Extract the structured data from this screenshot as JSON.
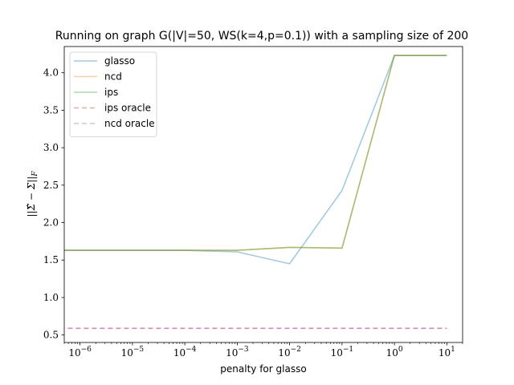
{
  "chart_data": {
    "type": "line",
    "title": "Running on graph G(|V|=50, WS(k=4,p=0.1)) with a sampling size of 200",
    "xlabel": "penalty for glasso",
    "ylabel": "||Σ̂ − Σ||F",
    "xscale": "log",
    "xlim": [
      5e-07,
      20
    ],
    "ylim": [
      0.4,
      4.35
    ],
    "x": [
      1e-07,
      1e-06,
      1e-05,
      0.0001,
      0.001,
      0.01,
      0.1,
      1,
      10
    ],
    "xtick_values": [
      1e-06,
      1e-05,
      0.0001,
      0.001,
      0.01,
      0.1,
      1,
      10
    ],
    "xtick_exponents": [
      "−6",
      "−5",
      "−4",
      "−3",
      "−2",
      "−1",
      "0",
      "1"
    ],
    "xtick_base": "10",
    "yticks": [
      0.5,
      1.0,
      1.5,
      2.0,
      2.5,
      3.0,
      3.5,
      4.0
    ],
    "ytick_labels": [
      "0.5",
      "1.0",
      "1.5",
      "2.0",
      "2.5",
      "3.0",
      "3.5",
      "4.0"
    ],
    "grid": false,
    "legend_position": "top-left",
    "series": [
      {
        "name": "glasso",
        "color": "#1f77b4",
        "opacity": 0.4,
        "dashed": false,
        "values": [
          1.63,
          1.63,
          1.63,
          1.63,
          1.61,
          1.45,
          2.43,
          4.23,
          4.23
        ]
      },
      {
        "name": "ncd",
        "color": "#ff7f0e",
        "opacity": 0.4,
        "dashed": false,
        "values": [
          1.63,
          1.63,
          1.63,
          1.63,
          1.63,
          1.67,
          1.66,
          4.23,
          4.23
        ]
      },
      {
        "name": "ips",
        "color": "#2ca02c",
        "opacity": 0.4,
        "dashed": false,
        "values": [
          1.63,
          1.63,
          1.63,
          1.63,
          1.63,
          1.67,
          1.66,
          4.23,
          4.23
        ]
      },
      {
        "name": "ips oracle",
        "color": "#d62728",
        "opacity": 0.4,
        "dashed": true,
        "values": [
          0.59,
          0.59,
          0.59,
          0.59,
          0.59,
          0.59,
          0.59,
          0.59,
          0.59
        ]
      },
      {
        "name": "ncd oracle",
        "color": "#9467bd",
        "opacity": 0.4,
        "dashed": true,
        "values": [
          0.59,
          0.59,
          0.59,
          0.59,
          0.59,
          0.59,
          0.59,
          0.59,
          0.59
        ]
      }
    ]
  }
}
